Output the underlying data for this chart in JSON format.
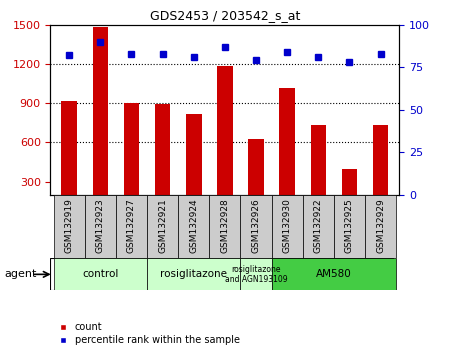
{
  "title": "GDS2453 / 203542_s_at",
  "samples": [
    "GSM132919",
    "GSM132923",
    "GSM132927",
    "GSM132921",
    "GSM132924",
    "GSM132928",
    "GSM132926",
    "GSM132930",
    "GSM132922",
    "GSM132925",
    "GSM132929"
  ],
  "counts": [
    920,
    1480,
    905,
    895,
    820,
    1185,
    625,
    1020,
    730,
    400,
    730
  ],
  "percentiles": [
    82,
    90,
    83,
    83,
    81,
    87,
    79,
    84,
    81,
    78,
    83
  ],
  "bar_color": "#cc0000",
  "dot_color": "#0000cc",
  "ylim_left": [
    200,
    1500
  ],
  "yticks_left": [
    300,
    600,
    900,
    1200,
    1500
  ],
  "ylim_right": [
    0,
    100
  ],
  "yticks_right": [
    0,
    25,
    50,
    75,
    100
  ],
  "grid_yticks": [
    600,
    900,
    1200
  ],
  "agent_label": "agent",
  "legend_count_label": "count",
  "legend_percentile_label": "percentile rank within the sample",
  "bar_width": 0.5,
  "bg_color": "#ffffff",
  "tick_area_color": "#cccccc",
  "group_data": [
    {
      "start": 0,
      "end": 2,
      "label": "control",
      "color": "#ccffcc"
    },
    {
      "start": 3,
      "end": 5,
      "label": "rosiglitazone",
      "color": "#ccffcc"
    },
    {
      "start": 6,
      "end": 6,
      "label": "rosiglitazone\nand AGN193109",
      "color": "#ccffcc"
    },
    {
      "start": 7,
      "end": 10,
      "label": "AM580",
      "color": "#44cc44"
    }
  ]
}
